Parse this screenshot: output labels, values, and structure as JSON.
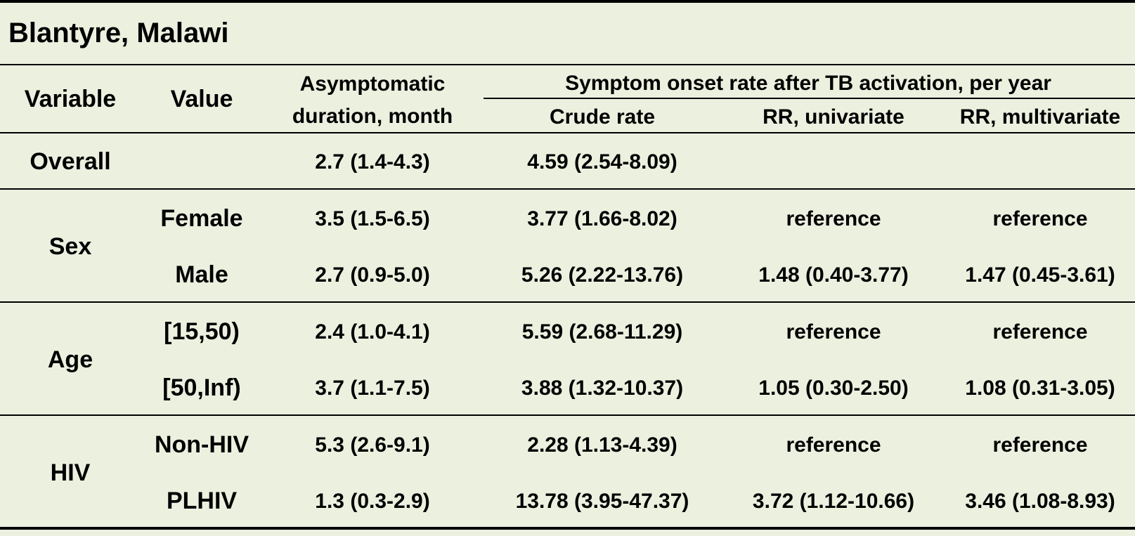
{
  "title": "Blantyre, Malawi",
  "headers": {
    "variable": "Variable",
    "value": "Value",
    "asymp_line1": "Asymptomatic",
    "asymp_line2": "duration, month",
    "group": "Symptom onset rate after TB activation, per year",
    "crude": "Crude rate",
    "rr_uni": "RR, univariate",
    "rr_multi": "RR, multivariate"
  },
  "rows": {
    "overall": {
      "variable": "Overall",
      "value": "",
      "asymp": "2.7 (1.4-4.3)",
      "crude": "4.59 (2.54-8.09)",
      "rr_uni": "",
      "rr_multi": ""
    },
    "sex": {
      "label": "Sex",
      "female": {
        "value": "Female",
        "asymp": "3.5 (1.5-6.5)",
        "crude": "3.77 (1.66-8.02)",
        "rr_uni": "reference",
        "rr_multi": "reference"
      },
      "male": {
        "value": "Male",
        "asymp": "2.7 (0.9-5.0)",
        "crude": "5.26 (2.22-13.76)",
        "rr_uni": "1.48 (0.40-3.77)",
        "rr_multi": "1.47 (0.45-3.61)"
      }
    },
    "age": {
      "label": "Age",
      "young": {
        "value": "[15,50)",
        "asymp": "2.4 (1.0-4.1)",
        "crude": "5.59 (2.68-11.29)",
        "rr_uni": "reference",
        "rr_multi": "reference"
      },
      "old": {
        "value": "[50,Inf)",
        "asymp": "3.7 (1.1-7.5)",
        "crude": "3.88 (1.32-10.37)",
        "rr_uni": "1.05 (0.30-2.50)",
        "rr_multi": "1.08 (0.31-3.05)"
      }
    },
    "hiv": {
      "label": "HIV",
      "non": {
        "value": "Non-HIV",
        "asymp": "5.3 (2.6-9.1)",
        "crude": "2.28 (1.13-4.39)",
        "rr_uni": "reference",
        "rr_multi": "reference"
      },
      "plhiv": {
        "value": "PLHIV",
        "asymp": "1.3 (0.3-2.9)",
        "crude": "13.78 (3.95-47.37)",
        "rr_uni": "3.72 (1.12-10.66)",
        "rr_multi": "3.46 (1.08-8.93)"
      }
    }
  }
}
